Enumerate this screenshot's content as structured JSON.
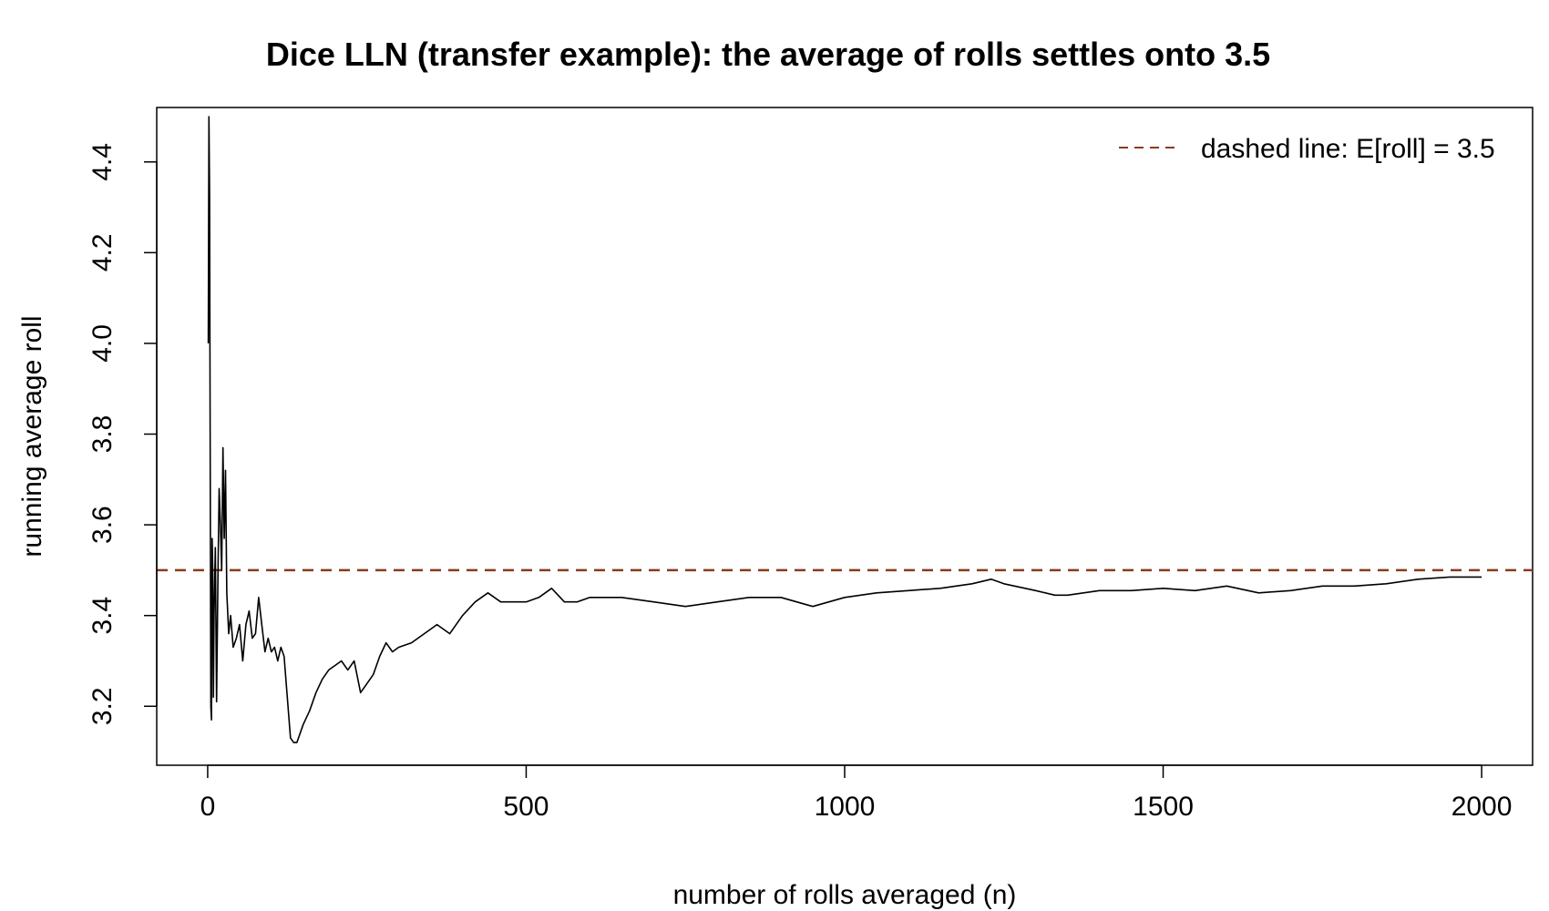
{
  "chart_data": {
    "type": "line",
    "title": "Dice LLN (transfer example): the average of rolls settles onto 3.5",
    "xlabel": "number of rolls averaged (n)",
    "ylabel": "running average roll",
    "xlim": [
      -80,
      2080
    ],
    "ylim": [
      3.07,
      4.52
    ],
    "x_ticks": [
      0,
      500,
      1000,
      1500,
      2000
    ],
    "x_tick_labels": [
      "0",
      "500",
      "1000",
      "1500",
      "2000"
    ],
    "y_ticks": [
      3.2,
      3.4,
      3.6,
      3.8,
      4.0,
      4.2,
      4.4
    ],
    "y_tick_labels": [
      "3.2",
      "3.4",
      "3.6",
      "3.8",
      "4.0",
      "4.2",
      "4.4"
    ],
    "grid": false,
    "legend_position": "top-right",
    "reference_line": {
      "y": 3.5,
      "style": "dashed",
      "color": "#8B3A1A"
    },
    "legend": [
      {
        "label": "dashed line: E[roll] = 3.5",
        "color": "#8B3A1A",
        "style": "dashed"
      }
    ],
    "series": [
      {
        "color": "#000000",
        "x": [
          1,
          2,
          3,
          4,
          5,
          6,
          7,
          8,
          9,
          10,
          12,
          14,
          16,
          18,
          20,
          22,
          24,
          26,
          28,
          30,
          33,
          36,
          40,
          45,
          50,
          55,
          60,
          65,
          70,
          75,
          80,
          85,
          90,
          95,
          100,
          105,
          110,
          115,
          120,
          125,
          130,
          135,
          140,
          150,
          160,
          170,
          180,
          190,
          200,
          210,
          220,
          230,
          240,
          250,
          260,
          270,
          280,
          290,
          300,
          320,
          340,
          360,
          380,
          400,
          420,
          440,
          460,
          480,
          500,
          520,
          540,
          560,
          580,
          600,
          650,
          700,
          750,
          800,
          850,
          900,
          950,
          1000,
          1050,
          1100,
          1150,
          1200,
          1230,
          1250,
          1300,
          1330,
          1350,
          1400,
          1450,
          1500,
          1550,
          1600,
          1650,
          1700,
          1750,
          1800,
          1850,
          1900,
          1950,
          2000
        ],
        "y": [
          4.0,
          4.5,
          4.33,
          3.75,
          3.2,
          3.17,
          3.57,
          3.5,
          3.22,
          3.4,
          3.55,
          3.21,
          3.47,
          3.68,
          3.6,
          3.5,
          3.77,
          3.57,
          3.72,
          3.45,
          3.36,
          3.4,
          3.33,
          3.35,
          3.38,
          3.3,
          3.38,
          3.41,
          3.35,
          3.36,
          3.44,
          3.38,
          3.32,
          3.35,
          3.32,
          3.33,
          3.3,
          3.33,
          3.31,
          3.22,
          3.13,
          3.12,
          3.12,
          3.16,
          3.19,
          3.23,
          3.26,
          3.28,
          3.29,
          3.3,
          3.28,
          3.3,
          3.23,
          3.25,
          3.27,
          3.31,
          3.34,
          3.32,
          3.33,
          3.34,
          3.36,
          3.38,
          3.36,
          3.4,
          3.43,
          3.45,
          3.43,
          3.43,
          3.43,
          3.44,
          3.46,
          3.43,
          3.43,
          3.44,
          3.44,
          3.43,
          3.42,
          3.43,
          3.44,
          3.44,
          3.42,
          3.44,
          3.45,
          3.455,
          3.46,
          3.47,
          3.48,
          3.47,
          3.455,
          3.445,
          3.445,
          3.455,
          3.455,
          3.46,
          3.455,
          3.465,
          3.45,
          3.455,
          3.465,
          3.465,
          3.47,
          3.48,
          3.485,
          3.485
        ]
      }
    ]
  }
}
